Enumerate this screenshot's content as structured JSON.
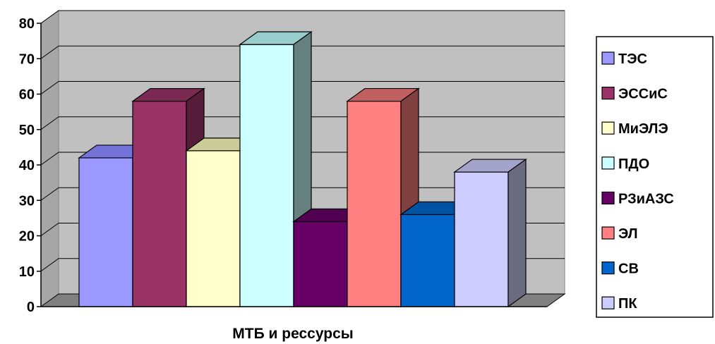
{
  "chart_data": {
    "type": "bar",
    "variant": "3d-clustered-column",
    "title": "",
    "xlabel": "МТБ и рессурсы",
    "ylabel": "",
    "ylim": [
      0,
      80
    ],
    "yticks": [
      0,
      10,
      20,
      30,
      40,
      50,
      60,
      70,
      80
    ],
    "grid": true,
    "legend_position": "right",
    "series": [
      {
        "name": "ТЭС",
        "values": [
          42
        ],
        "color": "#9999FF",
        "top_color": "#7373D9",
        "side_color": "#5C5CB0"
      },
      {
        "name": "ЭССиС",
        "values": [
          58
        ],
        "color": "#993366",
        "top_color": "#7A2952",
        "side_color": "#561C3A"
      },
      {
        "name": "МиЭЛЭ",
        "values": [
          44
        ],
        "color": "#FFFFCC",
        "top_color": "#CCCC99",
        "side_color": "#A6A680"
      },
      {
        "name": "ПДО",
        "values": [
          74
        ],
        "color": "#CCFFFF",
        "top_color": "#99CCCC",
        "side_color": "#668080"
      },
      {
        "name": "РЗиАЗС",
        "values": [
          24
        ],
        "color": "#660066",
        "top_color": "#520052",
        "side_color": "#3A003A"
      },
      {
        "name": "ЭЛ",
        "values": [
          58
        ],
        "color": "#FF8080",
        "top_color": "#C06060",
        "side_color": "#804040"
      },
      {
        "name": "СВ",
        "values": [
          26
        ],
        "color": "#0066CC",
        "top_color": "#0052A3",
        "side_color": "#003C78"
      },
      {
        "name": "ПК",
        "values": [
          38
        ],
        "color": "#CCCCFF",
        "top_color": "#A3A3CC",
        "side_color": "#6B6B80"
      }
    ],
    "colors": {
      "wall": "#C0C0C0",
      "floor": "#808080",
      "gridline": "#000000"
    }
  }
}
